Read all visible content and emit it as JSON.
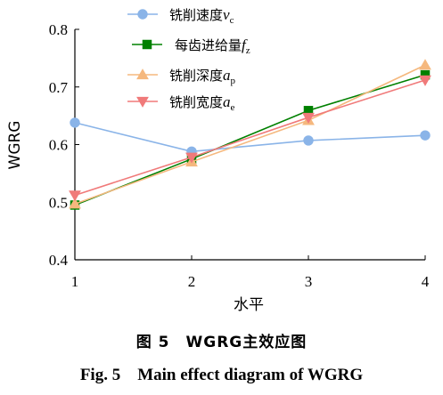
{
  "chart_data": {
    "type": "line",
    "xlabel": "水平",
    "ylabel": "WGRG",
    "x": [
      1,
      2,
      3,
      4
    ],
    "xticks": [
      "1",
      "2",
      "3",
      "4"
    ],
    "xlim": [
      1,
      4
    ],
    "ylim": [
      0.4,
      0.8
    ],
    "yticks": [
      "0.4",
      "0.5",
      "0.6",
      "0.7",
      "0.8"
    ],
    "grid": false,
    "legend_position": "top-center",
    "series": [
      {
        "name": "铣削速度",
        "var": "v",
        "sub": "c",
        "values": [
          0.638,
          0.588,
          0.607,
          0.616
        ],
        "color": "#8ab4e8",
        "marker": "circle"
      },
      {
        "name": "每齿进给量",
        "var": "f",
        "sub": "z",
        "values": [
          0.495,
          0.575,
          0.659,
          0.721
        ],
        "color": "#008000",
        "marker": "square"
      },
      {
        "name": "铣削深度",
        "var": "a",
        "sub": "p",
        "values": [
          0.497,
          0.57,
          0.642,
          0.738
        ],
        "color": "#f5b87e",
        "marker": "triangle-up"
      },
      {
        "name": "铣削宽度",
        "var": "a",
        "sub": "e",
        "values": [
          0.512,
          0.578,
          0.647,
          0.712
        ],
        "color": "#f07a7a",
        "marker": "triangle-down"
      }
    ]
  },
  "captions": {
    "cn": "图 5　WGRG主效应图",
    "en": "Fig. 5　Main effect diagram of WGRG"
  }
}
